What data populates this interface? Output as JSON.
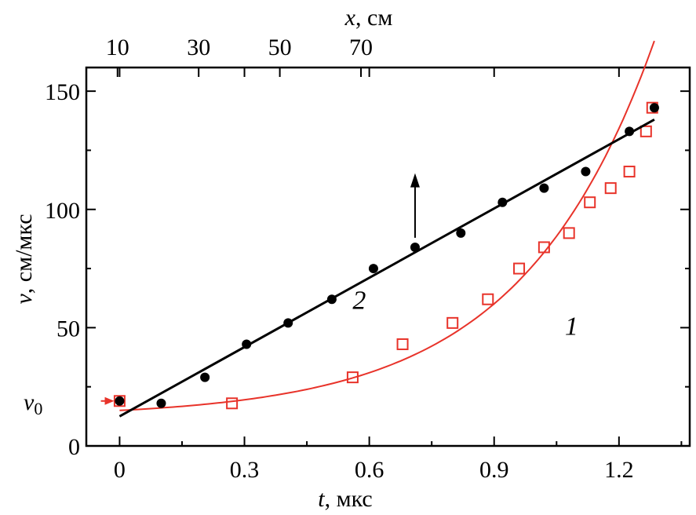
{
  "chart_data": {
    "type": "scatter",
    "title": "",
    "xlabel": {
      "var": "t",
      "unit": ", мкс"
    },
    "ylabel": {
      "var": "v",
      "unit": ", см/мкс"
    },
    "top_xlabel": {
      "var": "x",
      "unit": ", см"
    },
    "xlim": [
      -0.08,
      1.37
    ],
    "ylim": [
      0,
      160
    ],
    "xticks": [
      0,
      0.3,
      0.6,
      0.9,
      1.2
    ],
    "xtick_labels": [
      "0",
      "0.3",
      "0.6",
      "0.9",
      "1.2"
    ],
    "yticks": [
      0,
      50,
      100,
      150
    ],
    "ytick_labels": [
      "0",
      "50",
      "100",
      "150"
    ],
    "top_xticks_t": [
      -0.005,
      0.19,
      0.385,
      0.58
    ],
    "top_xtick_labels": [
      "10",
      "30",
      "50",
      "70"
    ],
    "v0_label": {
      "var": "v",
      "sub": "0"
    },
    "v0_value": 19,
    "series": [
      {
        "name": "1",
        "color": "#e8332a",
        "marker": "open-square",
        "points": [
          [
            0.0,
            19
          ],
          [
            0.27,
            18
          ],
          [
            0.56,
            29
          ],
          [
            0.68,
            43
          ],
          [
            0.8,
            52
          ],
          [
            0.885,
            62
          ],
          [
            0.96,
            75
          ],
          [
            1.02,
            84
          ],
          [
            1.08,
            90
          ],
          [
            1.13,
            103
          ],
          [
            1.18,
            109
          ],
          [
            1.225,
            116
          ],
          [
            1.265,
            133
          ],
          [
            1.28,
            143
          ]
        ],
        "fit": "exponential",
        "fit_params": {
          "a": 15.0,
          "b": 2.45,
          "c": 1.19
        },
        "fit_range": [
          0.0,
          1.285
        ],
        "label_position": {
          "t": 1.07,
          "v": 47
        }
      },
      {
        "name": "2",
        "color": "#000000",
        "marker": "filled-circle",
        "points": [
          [
            0.0,
            19
          ],
          [
            0.1,
            18
          ],
          [
            0.205,
            29
          ],
          [
            0.305,
            43
          ],
          [
            0.405,
            52
          ],
          [
            0.51,
            62
          ],
          [
            0.61,
            75
          ],
          [
            0.71,
            84
          ],
          [
            0.82,
            90
          ],
          [
            0.92,
            103
          ],
          [
            1.02,
            109
          ],
          [
            1.12,
            116
          ],
          [
            1.225,
            133
          ],
          [
            1.285,
            143
          ]
        ],
        "fit": "linear",
        "fit_line": [
          [
            0.0,
            12.5
          ],
          [
            1.285,
            138
          ]
        ],
        "label_position": {
          "t": 0.56,
          "v": 58
        }
      }
    ],
    "annotations": [
      {
        "type": "arrow",
        "direction": "up",
        "at_t": 0.71,
        "from_v": 88,
        "to_v": 114,
        "meaning": "series 2 uses top x axis"
      },
      {
        "type": "arrow",
        "direction": "right",
        "at_v": 19,
        "from_t": -0.045,
        "to_t": -0.013,
        "color": "#e8332a"
      }
    ]
  }
}
